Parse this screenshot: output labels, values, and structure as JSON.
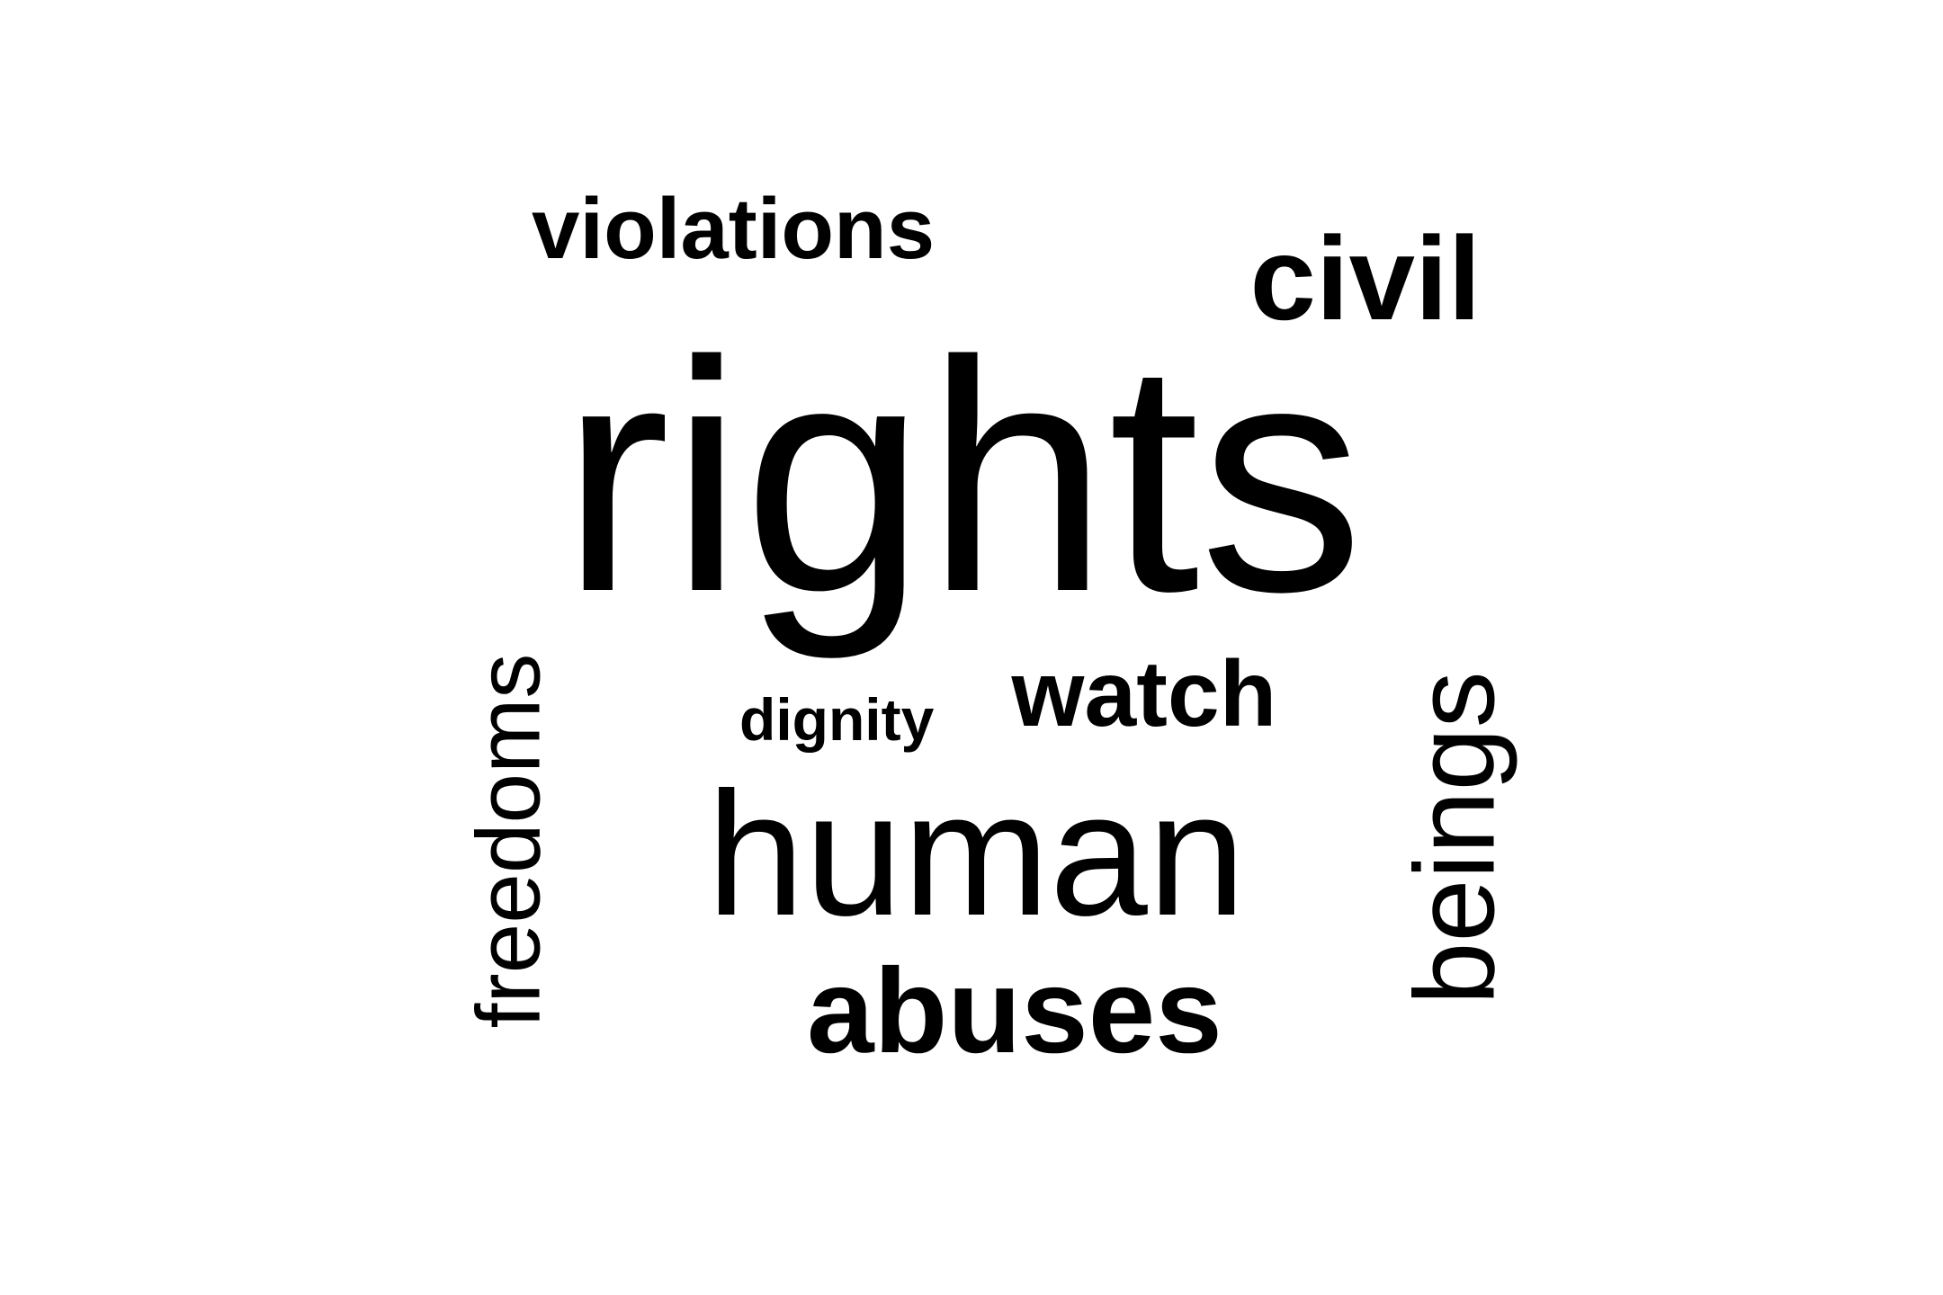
{
  "word_cloud": {
    "text_color": "#000000",
    "background_color": "#ffffff",
    "words": {
      "violations": "violations",
      "civil": "civil",
      "rights": "rights",
      "dignity": "dignity",
      "watch": "watch",
      "human": "human",
      "abuses": "abuses",
      "freedoms": "freedoms",
      "beings": "beings"
    }
  }
}
